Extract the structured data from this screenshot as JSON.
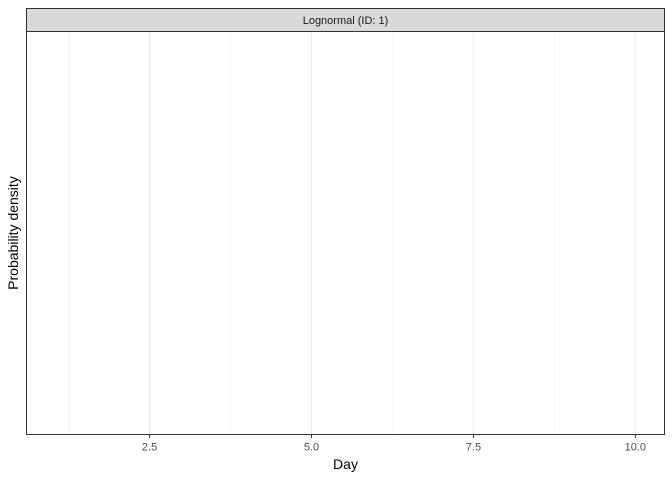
{
  "chart_data": {
    "type": "line",
    "facet_label": "Lognormal (ID: 1)",
    "xlabel": "Day",
    "ylabel": "Probability density",
    "xlim": [
      0.6,
      10.45
    ],
    "x_major_ticks": [
      2.5,
      5.0,
      7.5,
      10.0
    ],
    "x_tick_labels": [
      "2.5",
      "5.0",
      "7.5",
      "10.0"
    ],
    "x_minor_ticks": [
      1.25,
      3.75,
      6.25,
      8.75
    ],
    "y_tick_labels": [],
    "series": [],
    "grid": true,
    "legend": "none"
  }
}
